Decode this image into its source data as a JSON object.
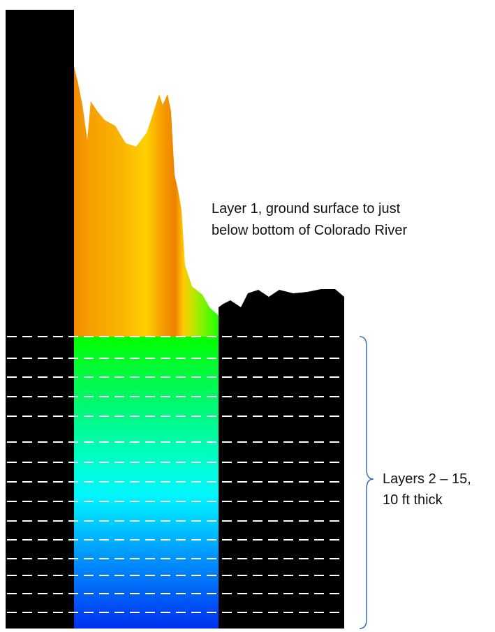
{
  "annotations": {
    "layer_1": [
      "Layer 1, ground surface to just",
      "below bottom of Colorado River"
    ],
    "layers_2_15": [
      "Layers 2 – 15,",
      "10 ft thick"
    ]
  }
}
